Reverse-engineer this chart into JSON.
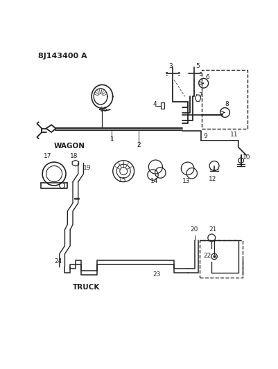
{
  "title": "8J143400 A",
  "bg": "#ffffff",
  "lc": "#222222",
  "fig_w": 4.01,
  "fig_h": 5.33,
  "dpi": 100,
  "xlim": [
    0,
    40.1
  ],
  "ylim": [
    0,
    53.3
  ]
}
